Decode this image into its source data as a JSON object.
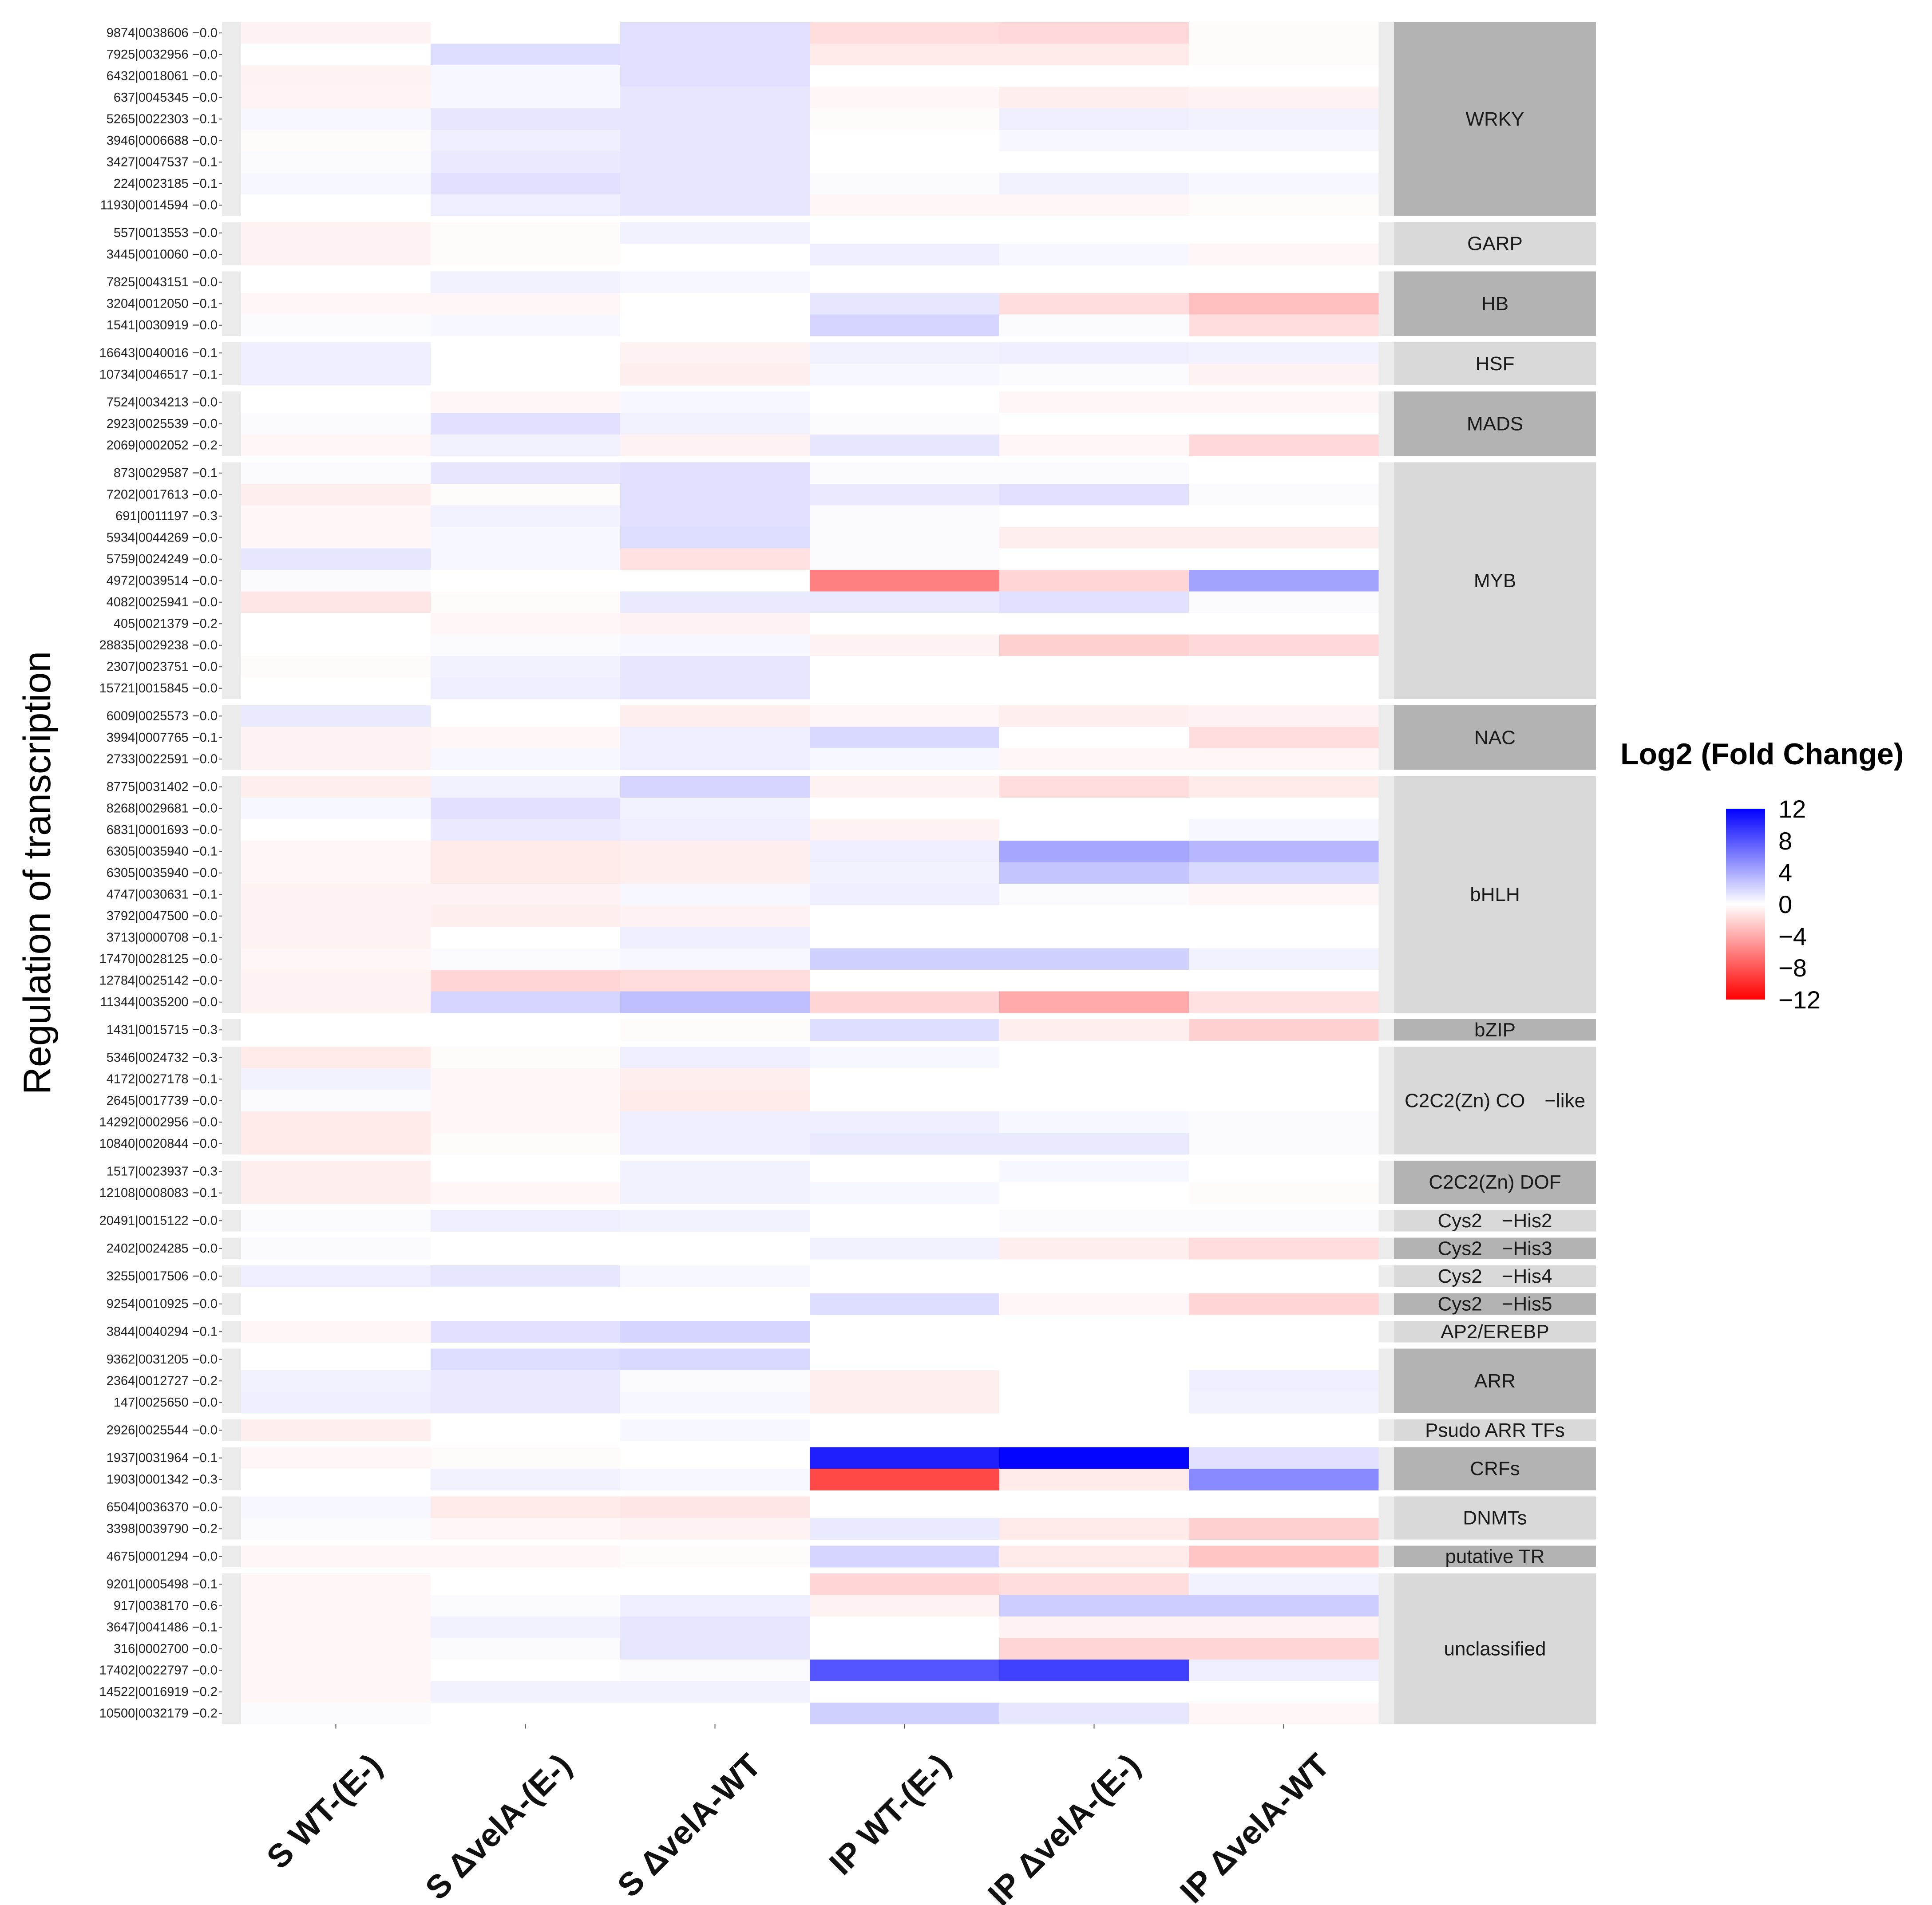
{
  "chart_data": {
    "type": "heatmap",
    "ylabel": "Regulation of transcription",
    "xlabels": [
      "S WT-(E-)",
      "S ΔvelA-(E-)",
      "S ΔvelA-WT",
      "IP WT-(E-)",
      "IP ΔvelA-(E-)",
      "IP ΔvelA-WT"
    ],
    "colorbar": {
      "title": "Log2 (Fold Change)",
      "range": [
        -12,
        12
      ],
      "ticks": [
        "12",
        "8",
        "4",
        "0",
        "−4",
        "−8",
        "−12"
      ],
      "tick_values": [
        12,
        8,
        4,
        0,
        -4,
        -8,
        -12
      ],
      "low_color": "#ff0000",
      "mid_color": "#ffffff",
      "high_color": "#0000ff"
    },
    "groups": [
      {
        "name": "WRKY",
        "rows": [
          {
            "label": "9874|0038606 −0.0",
            "values": [
              -0.6,
              0.0,
              1.4,
              -1.6,
              -1.8,
              -0.2
            ]
          },
          {
            "label": "7925|0032956 −0.0",
            "values": [
              0.0,
              1.6,
              1.4,
              -1.0,
              -1.0,
              -0.2
            ]
          },
          {
            "label": "6432|0018061 −0.0",
            "values": [
              -0.6,
              0.4,
              1.4,
              0.0,
              0.0,
              0.0
            ]
          },
          {
            "label": "637|0045345 −0.0",
            "values": [
              -0.5,
              0.4,
              1.2,
              -0.4,
              -0.8,
              -0.6
            ]
          },
          {
            "label": "5265|0022303 −0.1",
            "values": [
              0.4,
              1.2,
              1.2,
              -0.2,
              0.8,
              0.6
            ]
          },
          {
            "label": "3946|0006688 −0.0",
            "values": [
              -0.2,
              0.8,
              1.2,
              0.0,
              0.4,
              0.4
            ]
          },
          {
            "label": "3427|0047537 −0.1",
            "values": [
              0.2,
              1.0,
              1.2,
              0.0,
              0.0,
              0.0
            ]
          },
          {
            "label": "224|0023185 −0.1",
            "values": [
              0.4,
              1.4,
              1.2,
              0.2,
              0.6,
              0.4
            ]
          },
          {
            "label": "11930|0014594 −0.0",
            "values": [
              0.0,
              0.8,
              1.2,
              -0.4,
              -0.4,
              -0.2
            ]
          }
        ]
      },
      {
        "name": "GARP",
        "rows": [
          {
            "label": "557|0013553 −0.0",
            "values": [
              -0.6,
              -0.2,
              0.6,
              0.0,
              0.0,
              0.0
            ]
          },
          {
            "label": "3445|0010060 −0.0",
            "values": [
              -0.6,
              -0.2,
              0.0,
              0.8,
              0.4,
              -0.4
            ]
          }
        ]
      },
      {
        "name": "HB",
        "rows": [
          {
            "label": "7825|0043151 −0.0",
            "values": [
              0.0,
              0.6,
              0.4,
              0.0,
              0.0,
              0.0
            ]
          },
          {
            "label": "3204|0012050 −0.1",
            "values": [
              -0.4,
              -0.4,
              0.0,
              1.2,
              -1.6,
              -3.0
            ]
          },
          {
            "label": "1541|0030919 −0.0",
            "values": [
              0.2,
              0.4,
              0.0,
              2.0,
              0.2,
              -1.6
            ]
          }
        ]
      },
      {
        "name": "HSF",
        "rows": [
          {
            "label": "16643|0040016 −0.1",
            "values": [
              0.8,
              0.0,
              -0.6,
              0.6,
              0.8,
              0.6
            ]
          },
          {
            "label": "10734|0046517 −0.1",
            "values": [
              0.8,
              0.0,
              -0.8,
              0.4,
              0.2,
              -0.6
            ]
          }
        ]
      },
      {
        "name": "MADS",
        "rows": [
          {
            "label": "7524|0034213 −0.0",
            "values": [
              0.0,
              -0.4,
              0.4,
              0.0,
              -0.4,
              -0.4
            ]
          },
          {
            "label": "2923|0025539 −0.0",
            "values": [
              0.2,
              1.4,
              0.6,
              0.2,
              0.0,
              0.0
            ]
          },
          {
            "label": "2069|0002052 −0.2",
            "values": [
              -0.4,
              0.6,
              -0.6,
              1.2,
              -0.4,
              -1.8
            ]
          }
        ]
      },
      {
        "name": "MYB",
        "rows": [
          {
            "label": "873|0029587 −0.1",
            "values": [
              0.2,
              1.2,
              1.4,
              0.2,
              0.2,
              0.0
            ]
          },
          {
            "label": "7202|0017613 −0.0",
            "values": [
              -0.8,
              -0.2,
              1.4,
              1.0,
              1.4,
              0.2
            ]
          },
          {
            "label": "691|0011197 −0.3",
            "values": [
              -0.4,
              0.6,
              1.4,
              0.2,
              0.0,
              0.0
            ]
          },
          {
            "label": "5934|0044269 −0.0",
            "values": [
              -0.4,
              0.4,
              1.6,
              0.2,
              -0.8,
              -0.8
            ]
          },
          {
            "label": "5759|0024249 −0.0",
            "values": [
              1.2,
              0.4,
              -1.4,
              0.2,
              0.0,
              0.0
            ]
          },
          {
            "label": "4972|0039514 −0.0",
            "values": [
              0.2,
              0.0,
              0.0,
              -6.0,
              -2.0,
              4.4
            ]
          },
          {
            "label": "4082|0025941 −0.0",
            "values": [
              -1.2,
              -0.2,
              1.0,
              1.0,
              1.4,
              0.2
            ]
          },
          {
            "label": "405|0021379 −0.2",
            "values": [
              0.0,
              -0.4,
              -0.6,
              0.0,
              0.0,
              0.0
            ]
          },
          {
            "label": "28835|0029238 −0.0",
            "values": [
              0.0,
              0.2,
              0.4,
              -0.6,
              -2.2,
              -1.8
            ]
          },
          {
            "label": "2307|0023751 −0.0",
            "values": [
              -0.2,
              0.6,
              1.2,
              0.0,
              0.0,
              0.0
            ]
          },
          {
            "label": "15721|0015845 −0.0",
            "values": [
              0.0,
              0.8,
              1.2,
              0.0,
              0.0,
              0.0
            ]
          }
        ]
      },
      {
        "name": "NAC",
        "rows": [
          {
            "label": "6009|0025573 −0.0",
            "values": [
              1.0,
              0.0,
              -0.8,
              -0.4,
              -0.8,
              -0.6
            ]
          },
          {
            "label": "3994|0007765 −0.1",
            "values": [
              -0.6,
              -0.4,
              0.8,
              1.8,
              0.0,
              -1.6
            ]
          },
          {
            "label": "2733|0022591 −0.0",
            "values": [
              -0.6,
              0.4,
              0.8,
              0.4,
              -0.4,
              -0.4
            ]
          }
        ]
      },
      {
        "name": "bHLH",
        "rows": [
          {
            "label": "8775|0031402 −0.0",
            "values": [
              -0.8,
              0.6,
              2.0,
              -0.6,
              -1.6,
              -1.0
            ]
          },
          {
            "label": "8268|0029681 −0.0",
            "values": [
              0.4,
              1.4,
              0.6,
              0.0,
              0.0,
              0.0
            ]
          },
          {
            "label": "6831|0001693 −0.0",
            "values": [
              0.0,
              1.0,
              0.8,
              -0.6,
              0.0,
              0.4
            ]
          },
          {
            "label": "6305|0035940 −0.1",
            "values": [
              -0.4,
              -1.0,
              -0.8,
              0.8,
              4.2,
              3.4
            ]
          },
          {
            "label": "6305|0035940 −0.0",
            "values": [
              -0.4,
              -1.0,
              -0.8,
              0.6,
              2.8,
              1.8
            ]
          },
          {
            "label": "4747|0030631 −0.1",
            "values": [
              -0.6,
              -0.6,
              0.4,
              0.8,
              0.2,
              -0.4
            ]
          },
          {
            "label": "3792|0047500 −0.0",
            "values": [
              -0.6,
              -0.8,
              -0.6,
              0.0,
              0.0,
              0.0
            ]
          },
          {
            "label": "3713|0000708 −0.1",
            "values": [
              -0.6,
              0.0,
              0.8,
              0.0,
              0.0,
              0.0
            ]
          },
          {
            "label": "17470|0028125 −0.0",
            "values": [
              -0.4,
              0.2,
              0.4,
              2.2,
              2.2,
              0.6
            ]
          },
          {
            "label": "12784|0025142 −0.0",
            "values": [
              -0.6,
              -2.0,
              -1.6,
              0.0,
              0.0,
              0.0
            ]
          },
          {
            "label": "11344|0035200 −0.0",
            "values": [
              -0.6,
              2.0,
              3.0,
              -2.0,
              -4.0,
              -1.4
            ]
          }
        ]
      },
      {
        "name": "bZIP",
        "rows": [
          {
            "label": "1431|0015715 −0.3",
            "values": [
              0.0,
              0.0,
              -0.2,
              1.6,
              -0.8,
              -2.2
            ]
          }
        ]
      },
      {
        "name": "C2C2(Zn) CO −like",
        "rows": [
          {
            "label": "5346|0024732 −0.3",
            "values": [
              -1.0,
              -0.2,
              0.8,
              0.4,
              0.0,
              0.0
            ]
          },
          {
            "label": "4172|0027178 −0.1",
            "values": [
              0.6,
              -0.4,
              -0.8,
              0.0,
              0.0,
              0.0
            ]
          },
          {
            "label": "2645|0017739 −0.0",
            "values": [
              0.2,
              -0.4,
              -1.0,
              0.0,
              0.0,
              0.0
            ]
          },
          {
            "label": "14292|0002956 −0.0",
            "values": [
              -1.0,
              -0.4,
              0.8,
              0.8,
              0.4,
              0.2
            ]
          },
          {
            "label": "10840|0020844 −0.0",
            "values": [
              -1.0,
              -0.2,
              0.8,
              1.0,
              1.0,
              0.2
            ]
          }
        ]
      },
      {
        "name": "C2C2(Zn) DOF",
        "rows": [
          {
            "label": "1517|0023937 −0.3",
            "values": [
              -0.8,
              0.0,
              0.6,
              0.0,
              0.4,
              0.0
            ]
          },
          {
            "label": "12108|0008083 −0.1",
            "values": [
              -0.8,
              -0.4,
              0.6,
              0.4,
              0.0,
              -0.2
            ]
          }
        ]
      },
      {
        "name": "Cys2 −His2",
        "rows": [
          {
            "label": "20491|0015122 −0.0",
            "values": [
              0.2,
              0.8,
              0.6,
              0.0,
              0.2,
              0.2
            ]
          }
        ]
      },
      {
        "name": "Cys2 −His3",
        "rows": [
          {
            "label": "2402|0024285 −0.0",
            "values": [
              0.2,
              0.0,
              0.0,
              0.6,
              -0.8,
              -1.6
            ]
          }
        ]
      },
      {
        "name": "Cys2 −His4",
        "rows": [
          {
            "label": "3255|0017506 −0.0",
            "values": [
              0.8,
              1.2,
              0.4,
              0.0,
              0.0,
              0.0
            ]
          }
        ]
      },
      {
        "name": "Cys2 −His5",
        "rows": [
          {
            "label": "9254|0010925 −0.0",
            "values": [
              0.0,
              0.0,
              0.0,
              1.6,
              -0.4,
              -2.0
            ]
          }
        ]
      },
      {
        "name": "AP2/EREBP",
        "rows": [
          {
            "label": "3844|0040294 −0.1",
            "values": [
              -0.4,
              1.4,
              2.0,
              0.0,
              0.0,
              0.0
            ]
          }
        ]
      },
      {
        "name": "ARR",
        "rows": [
          {
            "label": "9362|0031205 −0.0",
            "values": [
              0.0,
              1.6,
              1.8,
              0.0,
              0.0,
              0.0
            ]
          },
          {
            "label": "2364|0012727 −0.2",
            "values": [
              0.6,
              1.0,
              0.2,
              -0.8,
              0.0,
              0.8
            ]
          },
          {
            "label": "147|0025650 −0.0",
            "values": [
              0.8,
              1.0,
              0.4,
              -0.8,
              0.0,
              0.6
            ]
          }
        ]
      },
      {
        "name": "Psudo ARR TFs",
        "rows": [
          {
            "label": "2926|0025544 −0.0",
            "values": [
              -0.8,
              0.0,
              0.4,
              0.0,
              0.0,
              0.0
            ]
          }
        ]
      },
      {
        "name": "CRFs",
        "rows": [
          {
            "label": "1937|0031964 −0.1",
            "values": [
              -0.4,
              -0.2,
              0.0,
              10.6,
              11.8,
              1.4
            ]
          },
          {
            "label": "1903|0001342 −0.3",
            "values": [
              0.0,
              0.6,
              0.4,
              -8.6,
              -1.0,
              5.6
            ]
          }
        ]
      },
      {
        "name": "DNMTs",
        "rows": [
          {
            "label": "6504|0036370 −0.0",
            "values": [
              0.4,
              -1.0,
              -1.2,
              0.0,
              0.0,
              0.0
            ]
          },
          {
            "label": "3398|0039790 −0.2",
            "values": [
              0.2,
              -0.4,
              -0.6,
              1.0,
              -1.0,
              -2.2
            ]
          }
        ]
      },
      {
        "name": "putative TR",
        "rows": [
          {
            "label": "4675|0001294 −0.0",
            "values": [
              -0.4,
              -0.4,
              -0.2,
              2.0,
              -1.0,
              -2.8
            ]
          }
        ]
      },
      {
        "name": "unclassified",
        "rows": [
          {
            "label": "9201|0005498 −0.1",
            "values": [
              -0.4,
              0.0,
              0.0,
              -2.0,
              -1.6,
              0.6
            ]
          },
          {
            "label": "917|0038170 −0.6",
            "values": [
              -0.4,
              0.2,
              0.8,
              -0.6,
              2.4,
              2.4
            ]
          },
          {
            "label": "3647|0041486 −0.1",
            "values": [
              -0.4,
              0.6,
              1.2,
              0.0,
              -0.6,
              -0.6
            ]
          },
          {
            "label": "316|0002700 −0.0",
            "values": [
              -0.4,
              0.2,
              1.2,
              0.0,
              -2.0,
              -2.0
            ]
          },
          {
            "label": "17402|0022797 −0.0",
            "values": [
              -0.4,
              0.0,
              0.2,
              8.0,
              9.0,
              0.8
            ]
          },
          {
            "label": "14522|0016919 −0.2",
            "values": [
              -0.4,
              0.6,
              0.6,
              0.0,
              0.0,
              0.0
            ]
          },
          {
            "label": "10500|0032179 −0.2",
            "values": [
              0.2,
              0.0,
              0.0,
              2.2,
              1.2,
              -0.4
            ]
          }
        ]
      }
    ]
  }
}
